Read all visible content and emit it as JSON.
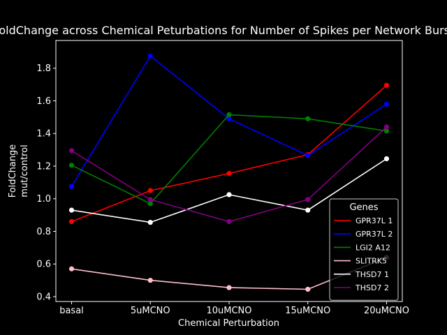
{
  "chart_data": {
    "type": "line",
    "title": "FoldChange across Chemical Peturbations for Number of Spikes per Network Burst",
    "xlabel": "Chemical Perturbation",
    "ylabel_line1": "FoldChange",
    "ylabel_line2": "mut/control",
    "categories": [
      "basal",
      "5uMCNO",
      "10uMCNO",
      "15uMCNO",
      "20uMCNO"
    ],
    "ylim": [
      0.37,
      1.97
    ],
    "yticks": [
      0.4,
      0.6,
      0.8,
      1.0,
      1.2,
      1.4,
      1.6,
      1.8
    ],
    "ytick_labels": [
      "0.4",
      "0.6",
      "0.8",
      "1.0",
      "1.2",
      "1.4",
      "1.6",
      "1.8"
    ],
    "grid": false,
    "legend": {
      "title": "Genes",
      "placement": "lower-right"
    },
    "series": [
      {
        "name": "GPR37L 1",
        "color": "#ff0000",
        "values": [
          0.86,
          1.05,
          1.155,
          1.27,
          1.695
        ]
      },
      {
        "name": "GPR37L 2",
        "color": "#0000ff",
        "values": [
          1.075,
          1.875,
          1.49,
          1.265,
          1.58
        ]
      },
      {
        "name": "LGI2 A12",
        "color": "#008000",
        "values": [
          1.205,
          0.97,
          1.515,
          1.49,
          1.415
        ]
      },
      {
        "name": "SLITRK5",
        "color": "#ffc0cb",
        "values": [
          0.57,
          0.5,
          0.455,
          0.445,
          0.64
        ]
      },
      {
        "name": "THSD7 1",
        "color": "#ffffff",
        "values": [
          0.93,
          0.855,
          1.025,
          0.93,
          1.245
        ]
      },
      {
        "name": "THSD7 2",
        "color": "#800080",
        "values": [
          1.295,
          0.995,
          0.86,
          0.995,
          1.44
        ]
      }
    ]
  }
}
